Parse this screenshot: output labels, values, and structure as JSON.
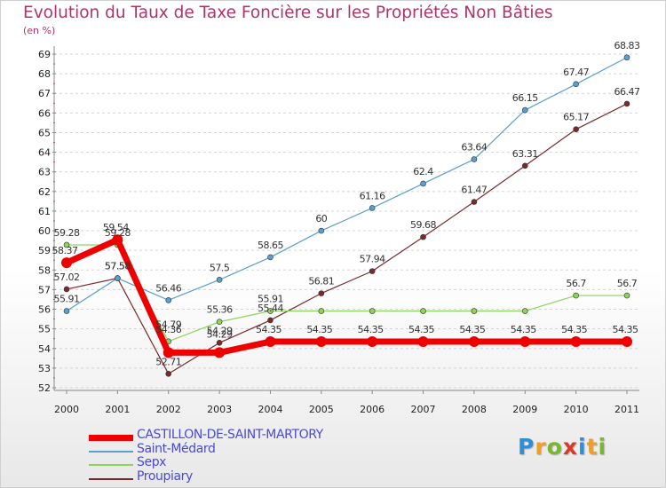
{
  "title": "Evolution du Taux de Taxe Foncière sur les Propriétés Non Bâties",
  "subtitle": "(en %)",
  "logo": [
    "P",
    "r",
    "o",
    "x",
    "i",
    "t",
    "i"
  ],
  "chart_data": {
    "type": "line",
    "title": "Evolution du Taux de Taxe Foncière sur les Propriétés Non Bâties",
    "ylabel": "(en %)",
    "xlabel": "",
    "ylim": [
      52,
      69
    ],
    "yticks": [
      52,
      53,
      54,
      55,
      56,
      57,
      58,
      59,
      60,
      61,
      62,
      63,
      64,
      65,
      66,
      67,
      68,
      69
    ],
    "categories": [
      "2000",
      "2001",
      "2002",
      "2003",
      "2004",
      "2005",
      "2006",
      "2007",
      "2008",
      "2009",
      "2010",
      "2011"
    ],
    "grid": "horizontal dashed",
    "legend_position": "bottom-left",
    "series": [
      {
        "name": "CASTILLON-DE-SAINT-MARTORY",
        "color": "#ee0000",
        "values": [
          58.37,
          59.54,
          53.79,
          53.79,
          54.35,
          54.35,
          54.35,
          54.35,
          54.35,
          54.35,
          54.35,
          54.35
        ],
        "labels": [
          "58.37",
          "59.54",
          "",
          "",
          "54.35",
          "54.35",
          "54.35",
          "54.35",
          "54.35",
          "54.35",
          "54.35",
          "54.35"
        ]
      },
      {
        "name": "Saint-Médard",
        "color": "#5a9fd0",
        "values": [
          55.91,
          57.58,
          56.46,
          57.5,
          58.65,
          60,
          61.16,
          62.4,
          63.64,
          66.15,
          67.47,
          68.83
        ],
        "labels": [
          "55.91",
          "57.58",
          "56.46",
          "57.5",
          "58.65",
          "60",
          "61.16",
          "62.4",
          "63.64",
          "66.15",
          "67.47",
          "68.83"
        ]
      },
      {
        "name": "Sepx",
        "color": "#8ed45a",
        "values": [
          59.28,
          59.28,
          54.36,
          55.36,
          55.91,
          55.91,
          55.91,
          55.91,
          55.91,
          55.91,
          56.7,
          56.7
        ],
        "labels": [
          "59.28",
          "59.28",
          "54.36",
          "55.36",
          "55.91",
          "",
          "",
          "",
          "",
          "",
          "56.7",
          "56.7"
        ]
      },
      {
        "name": "Proupiary",
        "color": "#7a2a2a",
        "values": [
          57.02,
          57.58,
          52.71,
          54.29,
          55.44,
          56.81,
          57.94,
          59.68,
          61.47,
          63.31,
          65.17,
          66.47
        ],
        "labels": [
          "57.02",
          "57.58",
          "52.71",
          "54.29",
          "55.44",
          "56.81",
          "57.94",
          "59.68",
          "61.47",
          "63.31",
          "65.17",
          "66.47"
        ]
      }
    ],
    "extra_labels": {
      "2002": "54.79",
      "2003": "54.29"
    }
  }
}
